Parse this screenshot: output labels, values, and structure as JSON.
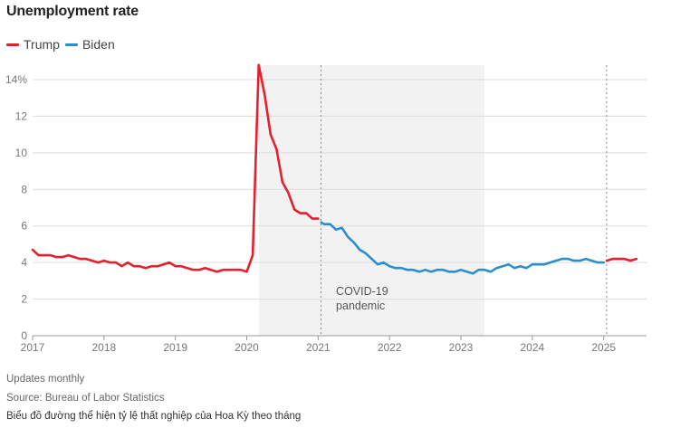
{
  "title": "Unemployment rate",
  "legend": [
    {
      "name": "Trump",
      "color": "#e3202e"
    },
    {
      "name": "Biden",
      "color": "#2b8fce"
    }
  ],
  "footer": {
    "line1": "Updates monthly",
    "line2": "Source: Bureau of Labor Statistics",
    "line3": "Biểu đồ đường thể hiện tỷ lệ thất nghiệp của Hoa Kỳ theo tháng"
  },
  "chart_data": {
    "type": "line",
    "title": "Unemployment rate",
    "xlabel": "",
    "ylabel": "",
    "xlim": [
      2017.0,
      2025.6
    ],
    "ylim": [
      0,
      14
    ],
    "grid": true,
    "legend_position": "top-left",
    "x_ticks": [
      "2017",
      "2018",
      "2019",
      "2020",
      "2021",
      "2022",
      "2023",
      "2024",
      "2025"
    ],
    "y_ticks": [
      "0",
      "2",
      "4",
      "6",
      "8",
      "10",
      "12",
      "14%"
    ],
    "shaded_region": {
      "x": [
        2020.17,
        2023.33
      ],
      "label": [
        "COVID-19",
        "pandemic"
      ]
    },
    "reference_lines": [
      2021.04,
      2025.04
    ],
    "series": [
      {
        "name": "Trump",
        "color": "#e3202e",
        "x": [
          2017.0,
          2017.083,
          2017.167,
          2017.25,
          2017.333,
          2017.417,
          2017.5,
          2017.583,
          2017.667,
          2017.75,
          2017.833,
          2017.917,
          2018.0,
          2018.083,
          2018.167,
          2018.25,
          2018.333,
          2018.417,
          2018.5,
          2018.583,
          2018.667,
          2018.75,
          2018.833,
          2018.917,
          2019.0,
          2019.083,
          2019.167,
          2019.25,
          2019.333,
          2019.417,
          2019.5,
          2019.583,
          2019.667,
          2019.75,
          2019.833,
          2019.917,
          2020.0,
          2020.083,
          2020.167,
          2020.25,
          2020.333,
          2020.417,
          2020.5,
          2020.583,
          2020.667,
          2020.75,
          2020.833,
          2020.917,
          2021.0
        ],
        "y": [
          4.7,
          4.4,
          4.4,
          4.4,
          4.3,
          4.3,
          4.4,
          4.3,
          4.2,
          4.2,
          4.1,
          4.0,
          4.1,
          4.0,
          4.0,
          3.8,
          4.0,
          3.8,
          3.8,
          3.7,
          3.8,
          3.8,
          3.9,
          4.0,
          3.8,
          3.8,
          3.7,
          3.6,
          3.6,
          3.7,
          3.6,
          3.5,
          3.6,
          3.6,
          3.6,
          3.6,
          3.5,
          4.4,
          14.8,
          13.2,
          11.0,
          10.2,
          8.4,
          7.8,
          6.9,
          6.7,
          6.7,
          6.4,
          6.4
        ]
      },
      {
        "name": "Biden",
        "color": "#2b8fce",
        "x": [
          2021.042,
          2021.083,
          2021.167,
          2021.25,
          2021.333,
          2021.417,
          2021.5,
          2021.583,
          2021.667,
          2021.75,
          2021.833,
          2021.917,
          2022.0,
          2022.083,
          2022.167,
          2022.25,
          2022.333,
          2022.417,
          2022.5,
          2022.583,
          2022.667,
          2022.75,
          2022.833,
          2022.917,
          2023.0,
          2023.083,
          2023.167,
          2023.25,
          2023.333,
          2023.417,
          2023.5,
          2023.583,
          2023.667,
          2023.75,
          2023.833,
          2023.917,
          2024.0,
          2024.083,
          2024.167,
          2024.25,
          2024.333,
          2024.417,
          2024.5,
          2024.583,
          2024.667,
          2024.75,
          2024.833,
          2024.917,
          2025.0
        ],
        "y": [
          6.2,
          6.1,
          6.1,
          5.8,
          5.9,
          5.4,
          5.1,
          4.7,
          4.5,
          4.2,
          3.9,
          4.0,
          3.8,
          3.7,
          3.7,
          3.6,
          3.6,
          3.5,
          3.6,
          3.5,
          3.6,
          3.6,
          3.5,
          3.5,
          3.6,
          3.5,
          3.4,
          3.6,
          3.6,
          3.5,
          3.7,
          3.8,
          3.9,
          3.7,
          3.8,
          3.7,
          3.9,
          3.9,
          3.9,
          4.0,
          4.1,
          4.2,
          4.2,
          4.1,
          4.1,
          4.2,
          4.1,
          4.0,
          4.0
        ]
      },
      {
        "name": "Trump",
        "color": "#e3202e",
        "x": [
          2025.042,
          2025.125,
          2025.208,
          2025.292,
          2025.375,
          2025.458
        ],
        "y": [
          4.1,
          4.2,
          4.2,
          4.2,
          4.1,
          4.2
        ]
      }
    ]
  }
}
